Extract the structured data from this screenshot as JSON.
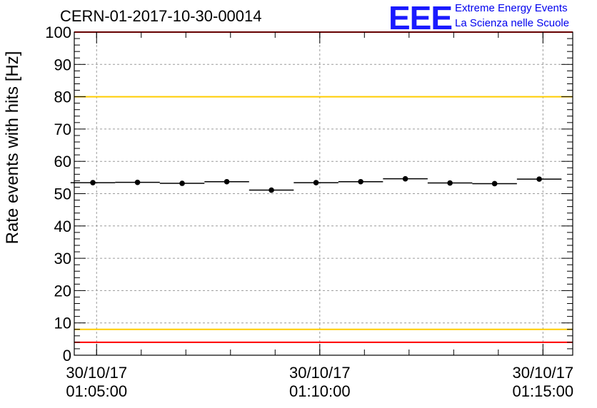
{
  "header": {
    "run_title": "CERN-01-2017-10-30-00014",
    "logo_text": "EEE",
    "logo_line1": "Extreme Energy Events",
    "logo_line2": "La Scienza nelle Scuole",
    "logo_color": "#1a1aff"
  },
  "chart_data": {
    "type": "scatter",
    "title": "CERN-01-2017-10-30-00014",
    "xlabel": "",
    "ylabel": "Rate events with hits [Hz]",
    "ylim": [
      0,
      100
    ],
    "xlim": [
      "30/10/17 01:04:30",
      "30/10/17 01:15:40"
    ],
    "y_ticks": [
      "0",
      "10",
      "20",
      "30",
      "40",
      "50",
      "60",
      "70",
      "80",
      "90",
      "100"
    ],
    "x_ticks": [
      {
        "date": "30/10/17",
        "time": "01:05:00"
      },
      {
        "date": "30/10/17",
        "time": "01:10:00"
      },
      {
        "date": "30/10/17",
        "time": "01:15:00"
      }
    ],
    "grid": true,
    "series": [
      {
        "x": [
          "01:04:55",
          "01:05:55",
          "01:06:55",
          "01:07:55",
          "01:08:55",
          "01:09:55",
          "01:10:55",
          "01:11:55",
          "01:12:55",
          "01:13:55",
          "01:14:55"
        ],
        "bin_width_seconds": 60,
        "values": [
          53.4,
          53.5,
          53.2,
          53.7,
          51.1,
          53.4,
          53.7,
          54.6,
          53.3,
          53.1,
          54.5
        ],
        "color": "#000000"
      }
    ],
    "reference_lines": [
      {
        "value": 100,
        "color": "#ff0000"
      },
      {
        "value": 80,
        "color": "#ffcc00"
      },
      {
        "value": 8,
        "color": "#ffcc00"
      },
      {
        "value": 4,
        "color": "#ff0000"
      }
    ]
  }
}
